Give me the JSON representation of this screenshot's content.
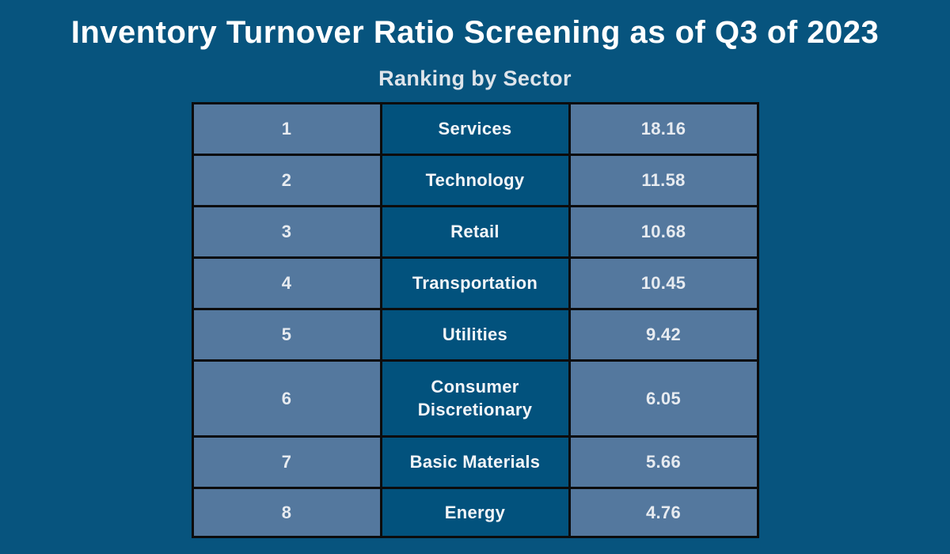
{
  "header": {
    "title": "Inventory Turnover Ratio Screening as of Q3 of 2023",
    "subtitle": "Ranking by Sector"
  },
  "chart_data": {
    "type": "table",
    "title": "Inventory Turnover Ratio Screening as of Q3 of 2023",
    "subtitle": "Ranking by Sector",
    "columns": [
      "rank",
      "sector",
      "value"
    ],
    "header_row_visible": false,
    "rows": [
      {
        "rank": "1",
        "sector": "Services",
        "value": "18.16"
      },
      {
        "rank": "2",
        "sector": "Technology",
        "value": "11.58"
      },
      {
        "rank": "3",
        "sector": "Retail",
        "value": "10.68"
      },
      {
        "rank": "4",
        "sector": "Transportation",
        "value": "10.45"
      },
      {
        "rank": "5",
        "sector": "Utilities",
        "value": "9.42"
      },
      {
        "rank": "6",
        "sector": "Consumer Discretionary",
        "value": "6.05"
      },
      {
        "rank": "7",
        "sector": "Basic Materials",
        "value": "5.66"
      },
      {
        "rank": "8",
        "sector": "Energy",
        "value": "4.76"
      }
    ]
  },
  "colors": {
    "background": "#07547E",
    "cell-light": "#54789E",
    "cell-dark": "#02527D",
    "border": "#0C0C0C",
    "title-text": "#FFFFFF",
    "subtitle-text": "#DEE4EA",
    "light-cell-text": "#E7EBF0",
    "dark-cell-text": "#F3F5F8"
  }
}
